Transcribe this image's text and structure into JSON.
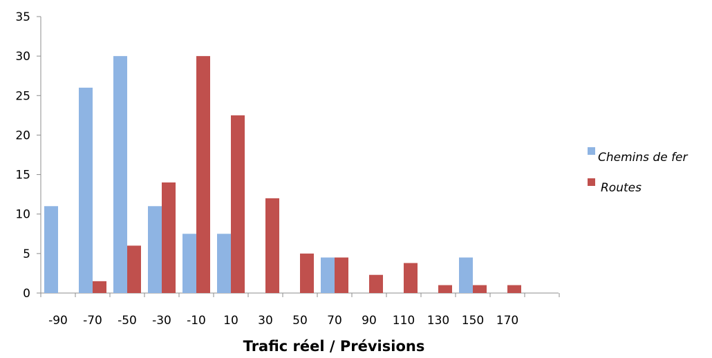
{
  "chart_data": {
    "type": "bar",
    "xlabel": "Trafic réel / Prévisions",
    "ylabel": "",
    "ylim": [
      0,
      35
    ],
    "yticks": [
      0,
      5,
      10,
      15,
      20,
      25,
      30,
      35
    ],
    "categories": [
      "-90",
      "-70",
      "-50",
      "-30",
      "-10",
      "10",
      "30",
      "50",
      "70",
      "90",
      "110",
      "130",
      "150",
      "170"
    ],
    "series": [
      {
        "name": "Chemins de fer",
        "color": "#8EB4E3",
        "values": [
          11,
          26,
          30,
          11,
          7.5,
          7.5,
          0,
          0,
          4.5,
          0,
          0,
          0,
          4.5,
          0
        ]
      },
      {
        "name": "Routes",
        "color": "#C0504D",
        "values": [
          0,
          1.5,
          6,
          14,
          30,
          22.5,
          12,
          5,
          4.5,
          2.3,
          3.8,
          1,
          1,
          1
        ]
      }
    ],
    "grid": false,
    "legend": "right"
  }
}
